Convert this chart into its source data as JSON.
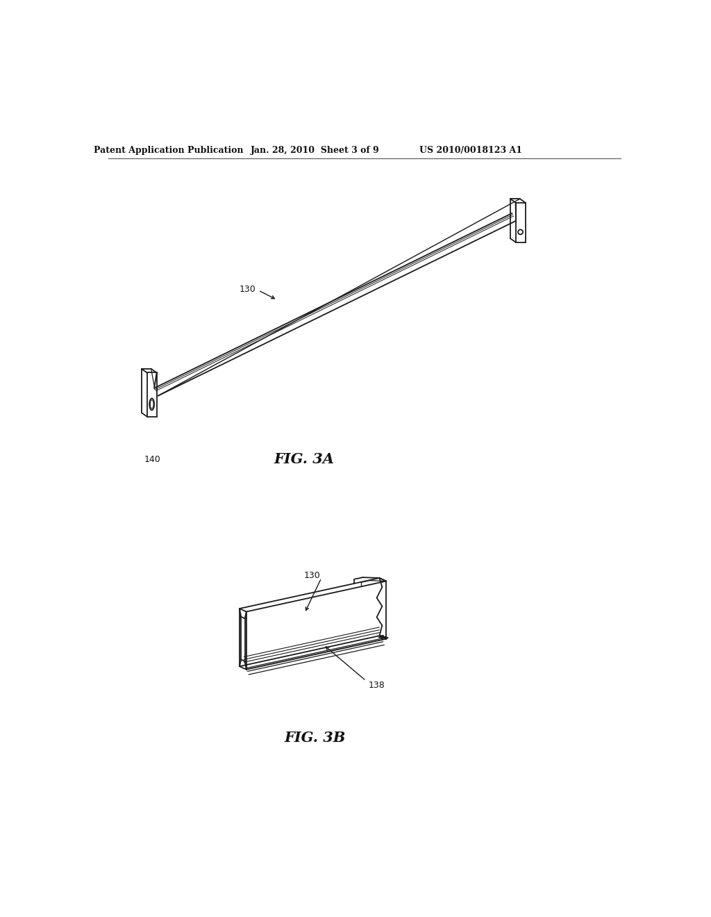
{
  "bg_color": "#ffffff",
  "header_left": "Patent Application Publication",
  "header_mid": "Jan. 28, 2010  Sheet 3 of 9",
  "header_right": "US 2010/0018123 A1",
  "fig3a_label": "FIG. 3A",
  "fig3b_label": "FIG. 3B",
  "label_130_3a": "130",
  "label_140": "140",
  "label_130_3b": "130",
  "label_138": "138",
  "color_line": "#1a1a1a",
  "color_gray": "#aaaaaa"
}
